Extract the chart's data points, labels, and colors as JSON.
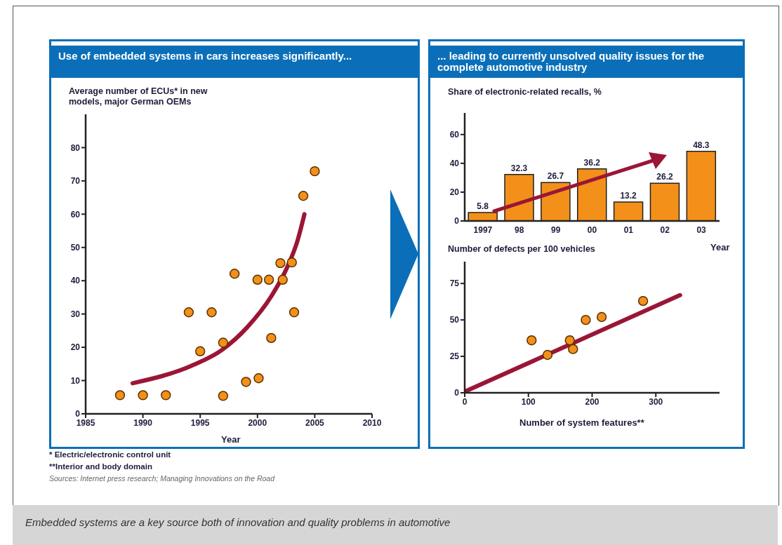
{
  "chart_data": [
    {
      "type": "scatter",
      "title": "Use of embedded systems in cars increases significantly...",
      "ylabel": "Average number of ECUs* in new models, major German OEMs",
      "xlabel": "Year",
      "xlim": [
        1985,
        2010
      ],
      "xticks": [
        1985,
        1990,
        1995,
        2000,
        2005,
        2010
      ],
      "ylim": [
        0,
        90
      ],
      "yticks": [
        0,
        10,
        20,
        30,
        40,
        50,
        60,
        70,
        80
      ],
      "series": [
        {
          "type": "scatter",
          "marker": "circle",
          "color": "#f39019",
          "x": [
            1988,
            1990,
            1992,
            1994,
            1995,
            1996,
            1997,
            1997,
            1998,
            1999,
            2000,
            2000.1,
            2001,
            2001.2,
            2002,
            2002.2,
            2003,
            2003.2,
            2004,
            2005
          ],
          "values": [
            5.6,
            5.6,
            5.6,
            30.5,
            18.8,
            30.5,
            21.4,
            5.4,
            42.1,
            9.6,
            40.3,
            10.7,
            40.3,
            22.8,
            45.3,
            40.3,
            45.5,
            30.5,
            65.5,
            72.9
          ]
        },
        {
          "type": "line",
          "marker": "none",
          "color": "#9b1636",
          "x": [
            1989.1,
            1994.2,
            1996.9,
            1999.1,
            2001.2,
            2002.6,
            2003.5,
            2004.1
          ],
          "values": [
            9.2,
            14.4,
            19.2,
            26,
            35.3,
            44.1,
            52.1,
            60
          ]
        }
      ],
      "annotations": [
        "* Electric/electronic control unit",
        "**Interior and body domain",
        "Sources: Internet press research; Managing Innovations on the Road",
        "Embedded systems are a key source both of innovation and quality problems in automotive"
      ]
    },
    {
      "type": "bar",
      "title": "... leading to currently unsolved quality issues for the complete automotive industry",
      "ylabel": "Share of electronic-related recalls, %",
      "xlabel": "Year",
      "categories": [
        "1997",
        "98",
        "99",
        "00",
        "01",
        "02",
        "03"
      ],
      "values": [
        5.8,
        32.3,
        26.7,
        36.2,
        13.2,
        26.2,
        48.3
      ],
      "color": "#f39019",
      "ylim": [
        0,
        75
      ],
      "yticks": [
        0,
        20,
        40,
        60
      ],
      "data_labels": true
    },
    {
      "type": "scatter",
      "ylabel": "Number of defects per 100 vehicles",
      "xlabel": "Number of system features**",
      "xlim": [
        0,
        400
      ],
      "xticks": [
        0,
        100,
        200,
        300
      ],
      "ylim": [
        0,
        90
      ],
      "yticks": [
        0,
        25,
        50,
        75
      ],
      "series": [
        {
          "type": "scatter",
          "marker": "circle",
          "color": "#f39019",
          "x": [
            105,
            130,
            165,
            170,
            190,
            215,
            280
          ],
          "values": [
            36,
            26,
            36,
            30,
            50,
            52,
            63
          ]
        },
        {
          "type": "line",
          "marker": "none",
          "color": "#9b1636",
          "x": [
            0,
            338
          ],
          "values": [
            0.8,
            67
          ]
        }
      ]
    }
  ]
}
